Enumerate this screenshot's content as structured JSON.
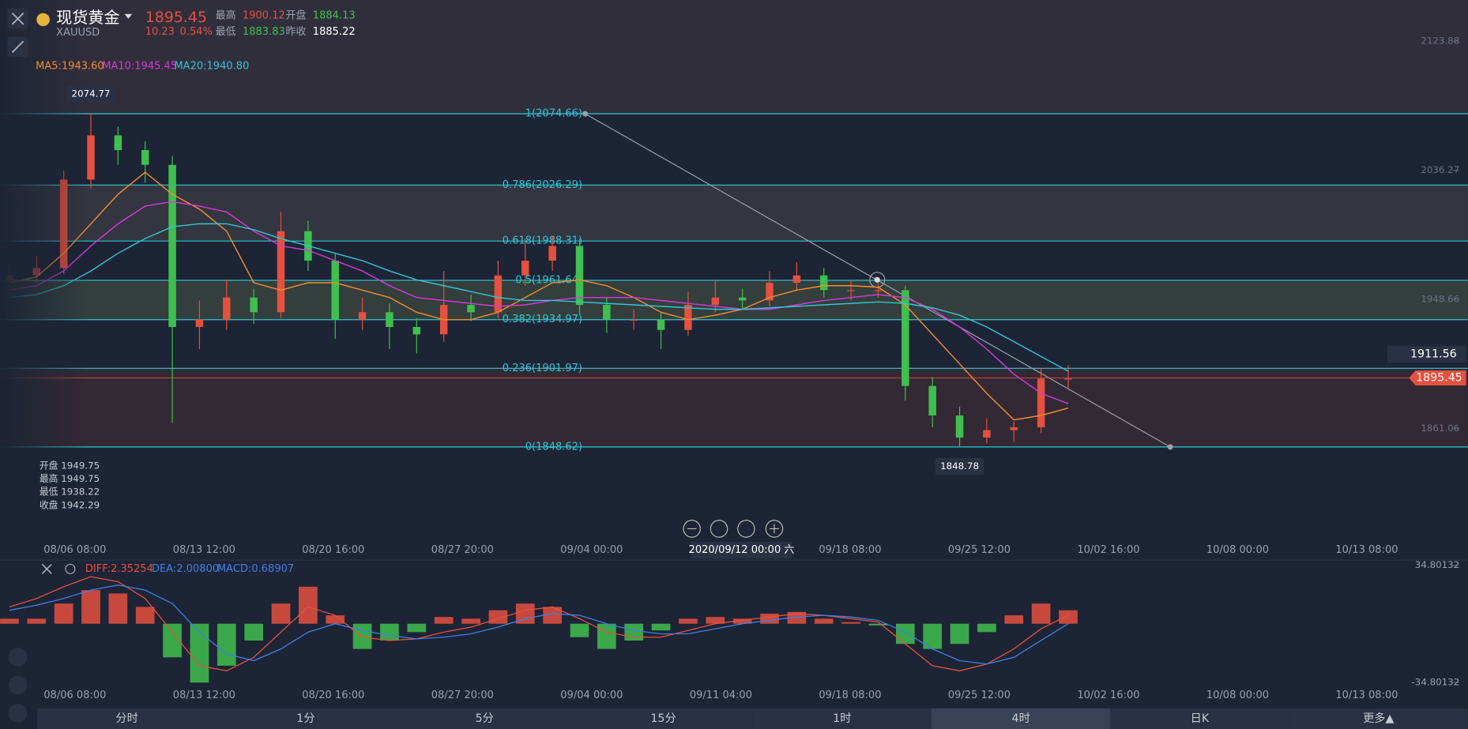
{
  "header": {
    "name": "现货黄金",
    "symbol": "XAUUSD",
    "price": "1895.45",
    "change": "10.23",
    "change_pct": "0.54%",
    "high_label": "最高",
    "high": "1900.12",
    "open_label": "开盘",
    "open": "1884.13",
    "low_label": "最低",
    "low": "1883.83",
    "prev_label": "昨收",
    "prev": "1885.22"
  },
  "chart_data": [
    {
      "type": "candlestick",
      "up_color": "#e5503f",
      "down_color": "#3fbf4f",
      "candles": [
        [
          1962,
          1972,
          1958,
          1965
        ],
        [
          1965,
          1978,
          1960,
          1970
        ],
        [
          1970,
          2036,
          1966,
          2030
        ],
        [
          2030,
          2075,
          2024,
          2060
        ],
        [
          2060,
          2066,
          2040,
          2050
        ],
        [
          2050,
          2056,
          2028,
          2040
        ],
        [
          2040,
          2046,
          1865,
          1930
        ],
        [
          1930,
          1948,
          1915,
          1935
        ],
        [
          1935,
          1962,
          1928,
          1950
        ],
        [
          1950,
          1956,
          1932,
          1940
        ],
        [
          1940,
          2008,
          1936,
          1995
        ],
        [
          1995,
          2002,
          1968,
          1975
        ],
        [
          1975,
          1980,
          1922,
          1935
        ],
        [
          1935,
          1950,
          1928,
          1940
        ],
        [
          1940,
          1946,
          1915,
          1930
        ],
        [
          1930,
          1936,
          1912,
          1925
        ],
        [
          1925,
          1968,
          1920,
          1945
        ],
        [
          1945,
          1952,
          1934,
          1940
        ],
        [
          1940,
          1975,
          1936,
          1965
        ],
        [
          1965,
          1990,
          1958,
          1975
        ],
        [
          1975,
          1992,
          1968,
          1985
        ],
        [
          1985,
          1990,
          1938,
          1945
        ],
        [
          1945,
          1950,
          1926,
          1935
        ],
        [
          1935,
          1942,
          1928,
          1935
        ],
        [
          1935,
          1940,
          1915,
          1928
        ],
        [
          1928,
          1954,
          1924,
          1945
        ],
        [
          1945,
          1962,
          1940,
          1950
        ],
        [
          1950,
          1956,
          1942,
          1948
        ],
        [
          1948,
          1968,
          1944,
          1960
        ],
        [
          1960,
          1974,
          1955,
          1965
        ],
        [
          1965,
          1970,
          1950,
          1955
        ],
        [
          1955,
          1962,
          1948,
          1955
        ],
        [
          1955,
          1960,
          1950,
          1955
        ],
        [
          1955,
          1958,
          1880,
          1890
        ],
        [
          1890,
          1896,
          1862,
          1870
        ],
        [
          1870,
          1876,
          1849,
          1855
        ],
        [
          1855,
          1868,
          1851,
          1860
        ],
        [
          1860,
          1866,
          1852,
          1862
        ],
        [
          1862,
          1902,
          1858,
          1895
        ],
        [
          1895,
          1904,
          1888,
          1895
        ]
      ],
      "series": [
        {
          "name": "MA5:1943.60",
          "color": "#f08c2e",
          "values": [
            1960,
            1964,
            1980,
            2000,
            2020,
            2035,
            2020,
            2010,
            1995,
            1960,
            1955,
            1960,
            1960,
            1955,
            1950,
            1940,
            1935,
            1935,
            1940,
            1950,
            1960,
            1962,
            1958,
            1950,
            1940,
            1935,
            1938,
            1942,
            1950,
            1955,
            1958,
            1958,
            1957,
            1945,
            1925,
            1905,
            1885,
            1867,
            1870,
            1875
          ]
        },
        {
          "name": "MA10:1945.45",
          "color": "#d53ad9",
          "values": [
            1955,
            1958,
            1968,
            1985,
            2000,
            2012,
            2015,
            2012,
            2008,
            1995,
            1985,
            1982,
            1975,
            1968,
            1958,
            1950,
            1948,
            1946,
            1944,
            1945,
            1948,
            1950,
            1950,
            1950,
            1948,
            1946,
            1944,
            1942,
            1942,
            1945,
            1948,
            1950,
            1952,
            1950,
            1942,
            1930,
            1915,
            1898,
            1885,
            1878
          ]
        },
        {
          "name": "MA20:1940.80",
          "color": "#2fc6d6",
          "values": [
            1950,
            1952,
            1958,
            1968,
            1980,
            1990,
            1998,
            2000,
            2000,
            1996,
            1990,
            1985,
            1980,
            1975,
            1968,
            1962,
            1958,
            1954,
            1950,
            1948,
            1948,
            1947,
            1946,
            1945,
            1944,
            1943,
            1942,
            1942,
            1943,
            1944,
            1945,
            1946,
            1947,
            1946,
            1943,
            1938,
            1930,
            1920,
            1910,
            1900
          ]
        }
      ],
      "ylim": [
        1828.06,
        2132.77
      ],
      "yticks": [
        2123.88,
        2036.27,
        1948.66,
        1861.06
      ],
      "fib_levels": [
        {
          "label": "1(2074.66)",
          "value": 2074.66
        },
        {
          "label": "0.786(2026.29)",
          "value": 2026.29
        },
        {
          "label": "0.618(1988.31)",
          "value": 1988.31
        },
        {
          "label": "0.5(1961.64)",
          "value": 1961.64
        },
        {
          "label": "0.382(1934.97)",
          "value": 1934.97
        },
        {
          "label": "0.236(1901.97)",
          "value": 1901.97
        },
        {
          "label": "0(1848.62)",
          "value": 1848.62
        }
      ],
      "high_marker": 2074.77,
      "low_marker": 1848.78,
      "alert_price": 1911.56,
      "current_price": 1895.45,
      "ohlc_info": [
        "开盘 1949.75",
        "最高 1949.75",
        "最低 1938.22",
        "收盘 1942.29"
      ],
      "time_labels": [
        "08/06 08:00",
        "08/13 12:00",
        "08/20 16:00",
        "08/27 20:00",
        "09/04 00:00",
        "09/11 04:00",
        "09/18 08:00",
        "09/25 12:00",
        "10/02 16:00",
        "10/08 00:00",
        "10/13 08:00"
      ],
      "crosshair_label": "2020/09/12 00:00 六"
    },
    {
      "type": "bar",
      "up_color": "#e5503f",
      "down_color": "#3fbf4f",
      "values": [
        3,
        3,
        12,
        20,
        18,
        10,
        -20,
        -35,
        -25,
        -10,
        12,
        22,
        5,
        -15,
        -10,
        -5,
        4,
        3,
        8,
        12,
        10,
        -8,
        -15,
        -10,
        -4,
        3,
        4,
        3,
        6,
        7,
        3,
        1,
        -1,
        -12,
        -15,
        -12,
        -5,
        5,
        12,
        8
      ],
      "legend_label": "MACD:0.68907",
      "series": [
        {
          "name": "DIFF:2.35254",
          "color": "#e5503f",
          "values": [
            10,
            15,
            22,
            28,
            25,
            15,
            -5,
            -25,
            -28,
            -20,
            -5,
            10,
            5,
            -8,
            -10,
            -9,
            -5,
            -2,
            3,
            8,
            10,
            3,
            -5,
            -8,
            -8,
            -4,
            0,
            2,
            4,
            6,
            5,
            3,
            1,
            -12,
            -25,
            -28,
            -24,
            -15,
            -3,
            5
          ]
        },
        {
          "name": "DEA:2.00800",
          "color": "#3f7fe5",
          "values": [
            8,
            11,
            15,
            20,
            23,
            20,
            12,
            -5,
            -18,
            -22,
            -15,
            -5,
            0,
            -4,
            -7,
            -9,
            -8,
            -6,
            -2,
            3,
            6,
            5,
            0,
            -4,
            -6,
            -6,
            -3,
            0,
            2,
            4,
            5,
            4,
            2,
            -5,
            -15,
            -22,
            -24,
            -20,
            -10,
            0
          ]
        }
      ],
      "ylim": [
        -34.80132,
        34.80132
      ],
      "yticks": [
        34.80132,
        -34.80132
      ]
    }
  ],
  "tabs": [
    "分时",
    "1分",
    "5分",
    "15分",
    "1时",
    "4时",
    "日K",
    "更多▲"
  ],
  "active_tab": 5
}
